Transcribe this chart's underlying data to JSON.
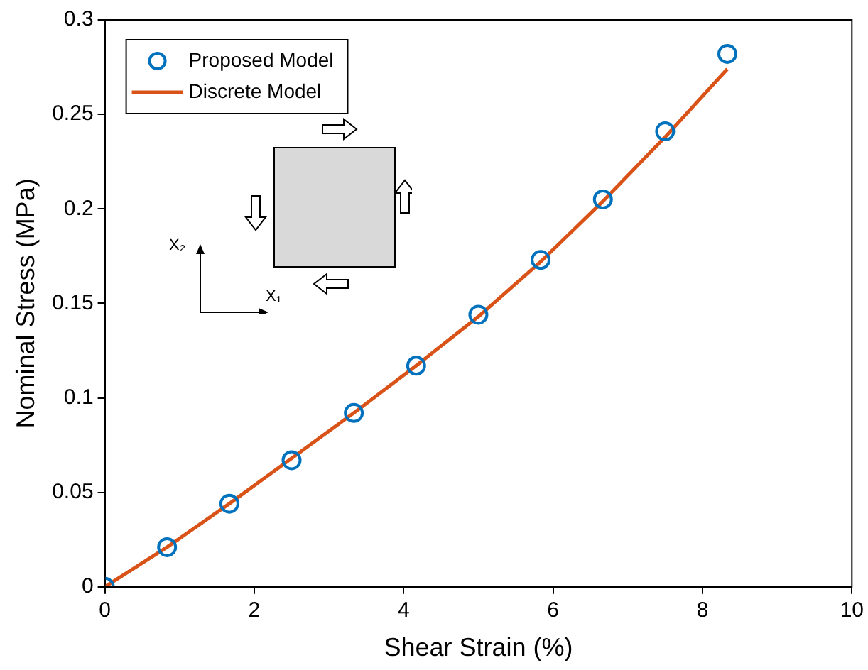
{
  "chart_data": {
    "type": "line",
    "xlabel": "Shear Strain (%)",
    "ylabel": "Nominal Stress (MPa)",
    "x": [
      0,
      0.833,
      1.667,
      2.5,
      3.333,
      4.167,
      5,
      5.833,
      6.667,
      7.5,
      8.333
    ],
    "xlim": [
      0,
      10
    ],
    "xticks": [
      0,
      2,
      4,
      6,
      8,
      10
    ],
    "ylim": [
      0,
      0.3
    ],
    "yticks": [
      0,
      0.05,
      0.1,
      0.15,
      0.2,
      0.25,
      0.3
    ],
    "grid": false,
    "legend": "top left",
    "series": [
      {
        "name": "Proposed Model",
        "type": "scatter",
        "marker": "circle",
        "color": "#0072bd",
        "values": [
          0,
          0.021,
          0.044,
          0.067,
          0.092,
          0.117,
          0.144,
          0.173,
          0.205,
          0.241,
          0.282
        ]
      },
      {
        "name": "Discrete Model",
        "type": "line",
        "marker": "none",
        "line_style": "solid",
        "color": "#d95319",
        "values": [
          0,
          0.021,
          0.044,
          0.068,
          0.092,
          0.117,
          0.143,
          0.172,
          0.204,
          0.238,
          0.274
        ]
      }
    ],
    "annotations": [
      "X₂",
      "X₁"
    ]
  }
}
